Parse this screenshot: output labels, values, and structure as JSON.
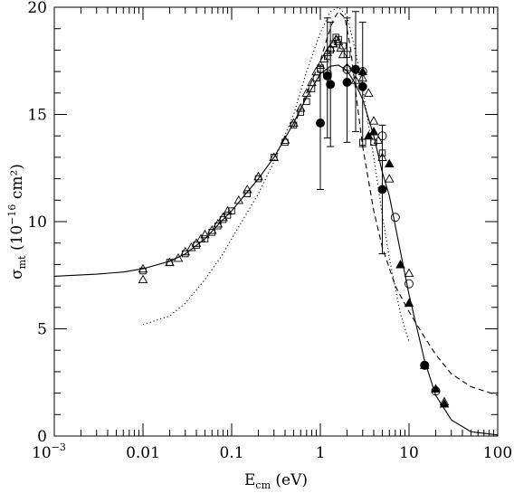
{
  "chart_data": {
    "type": "scatter",
    "x_scale": "log",
    "xlim": [
      0.001,
      100
    ],
    "ylim": [
      0,
      20
    ],
    "x_ticks": [
      {
        "value": 0.001,
        "label": "10",
        "exp": "−3"
      },
      {
        "value": 0.01,
        "label": "0.01"
      },
      {
        "value": 0.1,
        "label": "0.1"
      },
      {
        "value": 1,
        "label": "1"
      },
      {
        "value": 10,
        "label": "10"
      },
      {
        "value": 100,
        "label": "100"
      }
    ],
    "y_ticks": [
      0,
      5,
      10,
      15,
      20
    ],
    "xlabel": {
      "main": "E",
      "sub": "cm",
      "rest": " (eV)"
    },
    "ylabel": {
      "main": "σ",
      "sub": "mt",
      "rest": "  (10",
      "exp": "−16",
      "rest2": " cm²)"
    },
    "series": [
      {
        "marker": "open-triangle",
        "points": [
          [
            0.01,
            7.8
          ],
          [
            0.01,
            7.3
          ],
          [
            0.02,
            8.1
          ],
          [
            0.025,
            8.3
          ],
          [
            0.03,
            8.6
          ],
          [
            0.035,
            8.8
          ],
          [
            0.04,
            9.0
          ],
          [
            0.045,
            9.2
          ],
          [
            0.05,
            9.4
          ],
          [
            0.06,
            9.6
          ],
          [
            0.07,
            9.9
          ],
          [
            0.08,
            10.2
          ],
          [
            0.09,
            10.5
          ],
          [
            0.12,
            11.0
          ],
          [
            0.15,
            11.5
          ],
          [
            0.2,
            12.1
          ],
          [
            0.3,
            13.0
          ],
          [
            0.4,
            13.8
          ],
          [
            0.5,
            14.6
          ],
          [
            0.6,
            15.3
          ],
          [
            0.7,
            16.0
          ],
          [
            0.8,
            16.5
          ],
          [
            0.9,
            17.0
          ],
          [
            1.0,
            17.3
          ],
          [
            1.1,
            17.6
          ],
          [
            1.2,
            17.9
          ],
          [
            1.3,
            18.1
          ],
          [
            1.4,
            18.3
          ],
          [
            1.5,
            18.5
          ],
          [
            1.6,
            18.4
          ],
          [
            1.7,
            18.1
          ],
          [
            1.8,
            17.8
          ],
          [
            2.0,
            17.2
          ],
          [
            2.5,
            16.6
          ],
          [
            3.0,
            16.7
          ],
          [
            3.5,
            16.0
          ],
          [
            4.0,
            14.7
          ],
          [
            4.5,
            13.8
          ],
          [
            5.0,
            13.0
          ],
          [
            6.0,
            12.0
          ],
          [
            10.0,
            7.6
          ],
          [
            25.0,
            1.6
          ]
        ]
      },
      {
        "marker": "open-square",
        "points": [
          [
            0.01,
            7.7
          ],
          [
            0.02,
            8.1
          ],
          [
            0.03,
            8.5
          ],
          [
            0.04,
            8.9
          ],
          [
            0.05,
            9.2
          ],
          [
            0.06,
            9.5
          ],
          [
            0.07,
            9.8
          ],
          [
            0.08,
            10.1
          ],
          [
            0.09,
            10.3
          ],
          [
            0.1,
            10.5
          ],
          [
            0.15,
            11.3
          ],
          [
            0.2,
            12.0
          ],
          [
            0.3,
            13.0
          ],
          [
            0.4,
            13.7
          ],
          [
            0.5,
            14.5
          ],
          [
            0.6,
            15.1
          ],
          [
            0.7,
            15.6
          ],
          [
            0.8,
            16.2
          ],
          [
            0.9,
            16.7
          ],
          [
            1.0,
            17.1
          ],
          [
            1.2,
            17.7
          ],
          [
            1.3,
            18.0
          ],
          [
            1.4,
            18.3
          ],
          [
            1.5,
            18.6
          ],
          [
            1.6,
            18.5
          ],
          [
            1.8,
            18.2
          ],
          [
            2.0,
            17.8
          ],
          [
            3.0,
            13.7
          ],
          [
            4.0,
            13.7
          ],
          [
            5.0,
            13.2
          ]
        ]
      },
      {
        "marker": "filled-circle",
        "points": [
          [
            1.0,
            14.6
          ],
          [
            1.2,
            16.8
          ],
          [
            1.3,
            16.4
          ],
          [
            2.0,
            16.5
          ],
          [
            2.5,
            17.1
          ],
          [
            3.0,
            16.3
          ],
          [
            5.0,
            11.5
          ],
          [
            15.0,
            3.3
          ]
        ],
        "errors": [
          [
            1.0,
            11.5,
            17.3
          ],
          [
            1.2,
            13.9,
            19.5
          ],
          [
            1.3,
            13.5,
            19.3
          ],
          [
            2.0,
            13.7,
            19.5
          ],
          [
            2.5,
            14.2,
            19.8
          ],
          [
            3.0,
            13.5,
            19.3
          ],
          [
            5.0,
            8.5,
            14.5
          ]
        ]
      },
      {
        "marker": "open-circle",
        "points": [
          [
            1.2,
            16.9
          ],
          [
            2.0,
            17.1
          ],
          [
            3.0,
            17.0
          ],
          [
            5.0,
            14.0
          ],
          [
            7.0,
            10.2
          ],
          [
            10.0,
            7.1
          ],
          [
            15.0,
            3.3
          ],
          [
            20.0,
            2.1
          ]
        ]
      },
      {
        "marker": "filled-triangle",
        "points": [
          [
            3.0,
            17.0
          ],
          [
            3.5,
            14.0
          ],
          [
            4.0,
            14.2
          ],
          [
            6.0,
            12.7
          ],
          [
            8.0,
            8.0
          ],
          [
            10.0,
            6.2
          ],
          [
            15.0,
            3.3
          ],
          [
            20.0,
            2.2
          ],
          [
            25.0,
            1.5
          ]
        ]
      }
    ],
    "curves": [
      {
        "style": "solid",
        "points": [
          [
            0.001,
            7.45
          ],
          [
            0.003,
            7.55
          ],
          [
            0.006,
            7.65
          ],
          [
            0.01,
            7.8
          ],
          [
            0.02,
            8.15
          ],
          [
            0.03,
            8.5
          ],
          [
            0.05,
            9.2
          ],
          [
            0.08,
            10.1
          ],
          [
            0.1,
            10.5
          ],
          [
            0.2,
            12.0
          ],
          [
            0.3,
            13.0
          ],
          [
            0.5,
            14.6
          ],
          [
            0.7,
            15.8
          ],
          [
            1.0,
            16.9
          ],
          [
            1.3,
            17.25
          ],
          [
            1.6,
            17.3
          ],
          [
            2.0,
            17.05
          ],
          [
            2.5,
            16.4
          ],
          [
            3.0,
            15.7
          ],
          [
            4.0,
            14.0
          ],
          [
            5.0,
            12.3
          ],
          [
            6.0,
            11.2
          ],
          [
            8.0,
            8.6
          ],
          [
            10.0,
            6.6
          ],
          [
            12.0,
            5.2
          ],
          [
            15.0,
            3.5
          ],
          [
            20.0,
            1.9
          ],
          [
            30.0,
            0.75
          ],
          [
            50.0,
            0.2
          ],
          [
            100.0,
            0.05
          ]
        ]
      },
      {
        "style": "dashed",
        "points": [
          [
            0.5,
            14.4
          ],
          [
            0.7,
            16.0
          ],
          [
            1.0,
            17.5
          ],
          [
            1.2,
            18.6
          ],
          [
            1.4,
            19.4
          ],
          [
            1.6,
            19.8
          ],
          [
            1.9,
            19.5
          ],
          [
            2.2,
            18.0
          ],
          [
            2.6,
            15.5
          ],
          [
            3.0,
            13.5
          ],
          [
            4.0,
            10.5
          ],
          [
            5.0,
            8.8
          ],
          [
            7.0,
            7.0
          ],
          [
            10.0,
            5.8
          ],
          [
            15.0,
            4.6
          ],
          [
            20.0,
            3.8
          ],
          [
            30.0,
            2.9
          ],
          [
            50.0,
            2.3
          ],
          [
            100.0,
            1.9
          ]
        ]
      },
      {
        "style": "dotted",
        "points": [
          [
            0.01,
            5.2
          ],
          [
            0.02,
            5.6
          ],
          [
            0.03,
            6.2
          ],
          [
            0.05,
            7.3
          ],
          [
            0.08,
            8.5
          ],
          [
            0.1,
            9.2
          ],
          [
            0.2,
            11.3
          ],
          [
            0.3,
            12.8
          ],
          [
            0.5,
            15.0
          ],
          [
            0.7,
            17.0
          ],
          [
            1.0,
            18.8
          ],
          [
            1.3,
            19.8
          ],
          [
            1.6,
            20.0
          ],
          [
            2.0,
            19.6
          ],
          [
            2.5,
            17.9
          ],
          [
            3.0,
            16.2
          ],
          [
            4.0,
            13.0
          ],
          [
            5.0,
            10.3
          ],
          [
            6.0,
            8.3
          ],
          [
            8.0,
            5.7
          ],
          [
            10.0,
            4.4
          ]
        ]
      }
    ]
  }
}
